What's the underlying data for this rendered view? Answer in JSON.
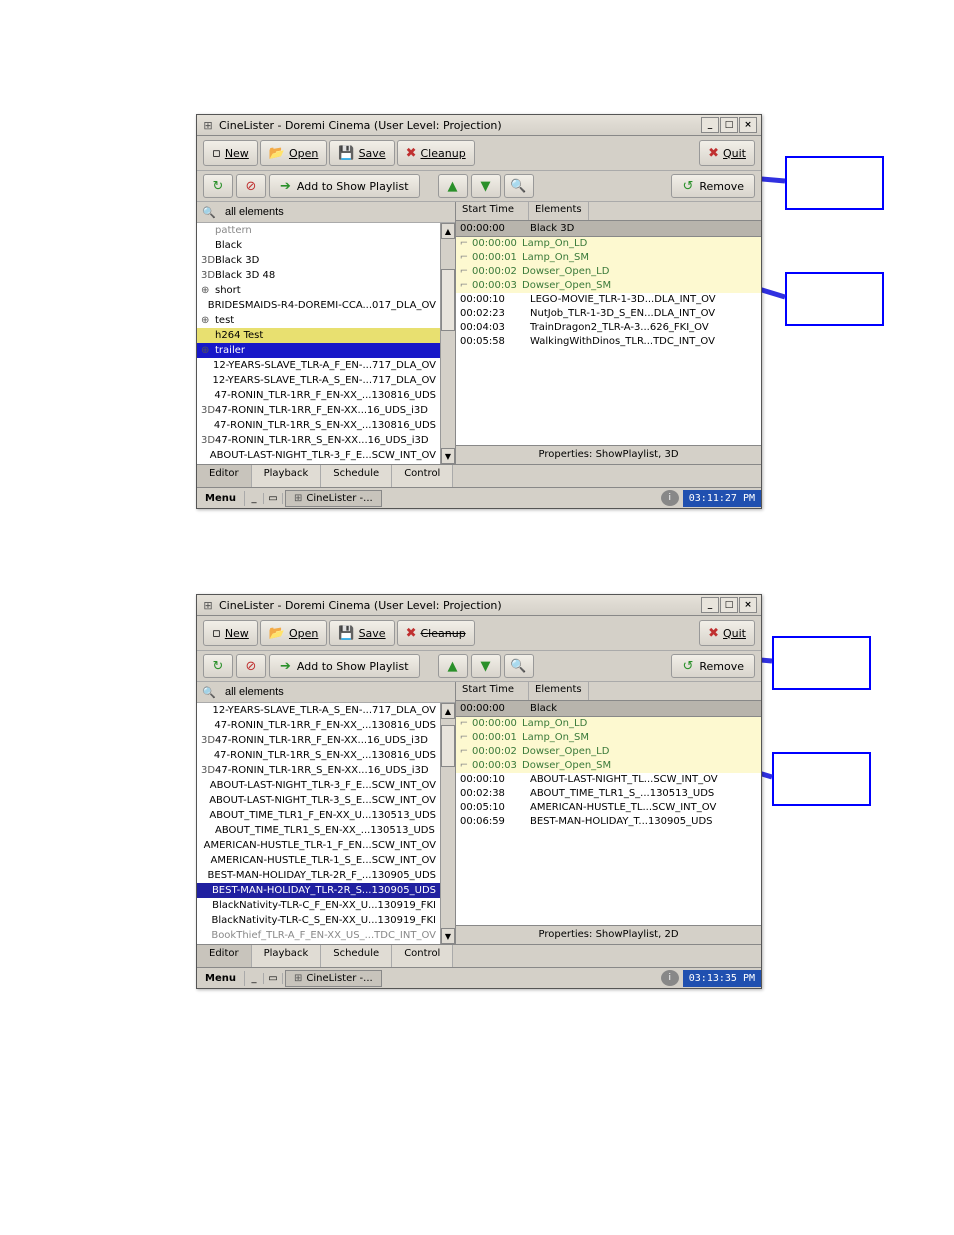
{
  "windows": [
    {
      "title": "CineLister - Doremi Cinema (User Level: Projection)",
      "toolbar": {
        "new": "New",
        "open": "Open",
        "save": "Save",
        "cleanup": "Cleanup",
        "quit": "Quit"
      },
      "subtoolbar": {
        "add": "Add to Show Playlist",
        "remove": "Remove"
      },
      "filter_value": "all elements",
      "elements": [
        {
          "icon": "",
          "label": "pattern",
          "cls": "ghost"
        },
        {
          "icon": "",
          "label": "Black",
          "cls": ""
        },
        {
          "icon": "3D",
          "label": "Black 3D",
          "cls": ""
        },
        {
          "icon": "3D",
          "label": "Black 3D 48",
          "cls": ""
        },
        {
          "icon": "⊕",
          "label": "short",
          "cls": ""
        },
        {
          "icon": "",
          "label": "BRIDESMAIDS-R4-DOREMI-CCA...017_DLA_OV",
          "cls": ""
        },
        {
          "icon": "⊕",
          "label": "test",
          "cls": ""
        },
        {
          "icon": "",
          "label": "h264 Test",
          "cls": "yellow"
        },
        {
          "icon": "⊕",
          "label": "trailer",
          "cls": "blue-sel"
        },
        {
          "icon": "",
          "label": "12-YEARS-SLAVE_TLR-A_F_EN-...717_DLA_OV",
          "cls": ""
        },
        {
          "icon": "",
          "label": "12-YEARS-SLAVE_TLR-A_S_EN-...717_DLA_OV",
          "cls": ""
        },
        {
          "icon": "",
          "label": "47-RONIN_TLR-1RR_F_EN-XX_...130816_UDS",
          "cls": ""
        },
        {
          "icon": "3D",
          "label": "47-RONIN_TLR-1RR_F_EN-XX...16_UDS_i3D",
          "cls": ""
        },
        {
          "icon": "",
          "label": "47-RONIN_TLR-1RR_S_EN-XX_...130816_UDS",
          "cls": ""
        },
        {
          "icon": "3D",
          "label": "47-RONIN_TLR-1RR_S_EN-XX...16_UDS_i3D",
          "cls": ""
        },
        {
          "icon": "",
          "label": "ABOUT-LAST-NIGHT_TLR-3_F_E...SCW_INT_OV",
          "cls": ""
        }
      ],
      "columns": {
        "start": "Start Time",
        "elem": "Elements"
      },
      "group": {
        "time": "00:00:00",
        "name": "Black 3D"
      },
      "macros": [
        {
          "time": "00:00:00",
          "name": "Lamp_On_LD"
        },
        {
          "time": "00:00:01",
          "name": "Lamp_On_SM"
        },
        {
          "time": "00:00:02",
          "name": "Dowser_Open_LD"
        },
        {
          "time": "00:00:03",
          "name": "Dowser_Open_SM"
        }
      ],
      "items": [
        {
          "time": "00:00:10",
          "name": "LEGO-MOVIE_TLR-1-3D...DLA_INT_OV"
        },
        {
          "time": "00:02:23",
          "name": "NutJob_TLR-1-3D_S_EN...DLA_INT_OV"
        },
        {
          "time": "00:04:03",
          "name": "TrainDragon2_TLR-A-3...626_FKI_OV"
        },
        {
          "time": "00:05:58",
          "name": "WalkingWithDinos_TLR...TDC_INT_OV"
        }
      ],
      "properties": "Properties: ShowPlaylist, 3D",
      "tabs": [
        "Editor",
        "Playback",
        "Schedule",
        "Control"
      ],
      "taskbar": {
        "menu": "Menu",
        "task": "CineLister -...",
        "clock": "03:11:27 PM"
      }
    },
    {
      "title": "CineLister - Doremi Cinema (User Level: Projection)",
      "toolbar": {
        "new": "New",
        "open": "Open",
        "save": "Save",
        "cleanup": "Cleanup",
        "quit": "Quit"
      },
      "subtoolbar": {
        "add": "Add to Show Playlist",
        "remove": "Remove"
      },
      "filter_value": "all elements",
      "elements": [
        {
          "icon": "",
          "label": "12-YEARS-SLAVE_TLR-A_S_EN-...717_DLA_OV",
          "cls": ""
        },
        {
          "icon": "",
          "label": "47-RONIN_TLR-1RR_F_EN-XX_...130816_UDS",
          "cls": ""
        },
        {
          "icon": "3D",
          "label": "47-RONIN_TLR-1RR_F_EN-XX...16_UDS_i3D",
          "cls": ""
        },
        {
          "icon": "",
          "label": "47-RONIN_TLR-1RR_S_EN-XX_...130816_UDS",
          "cls": ""
        },
        {
          "icon": "3D",
          "label": "47-RONIN_TLR-1RR_S_EN-XX...16_UDS_i3D",
          "cls": ""
        },
        {
          "icon": "",
          "label": "ABOUT-LAST-NIGHT_TLR-3_F_E...SCW_INT_OV",
          "cls": ""
        },
        {
          "icon": "",
          "label": "ABOUT-LAST-NIGHT_TLR-3_S_E...SCW_INT_OV",
          "cls": ""
        },
        {
          "icon": "",
          "label": "ABOUT_TIME_TLR1_F_EN-XX_U...130513_UDS",
          "cls": ""
        },
        {
          "icon": "",
          "label": "ABOUT_TIME_TLR1_S_EN-XX_...130513_UDS",
          "cls": ""
        },
        {
          "icon": "",
          "label": "AMERICAN-HUSTLE_TLR-1_F_EN...SCW_INT_OV",
          "cls": ""
        },
        {
          "icon": "",
          "label": "AMERICAN-HUSTLE_TLR-1_S_E...SCW_INT_OV",
          "cls": ""
        },
        {
          "icon": "",
          "label": "BEST-MAN-HOLIDAY_TLR-2R_F_...130905_UDS",
          "cls": ""
        },
        {
          "icon": "",
          "label": "BEST-MAN-HOLIDAY_TLR-2R_S...130905_UDS",
          "cls": "blue-sel2"
        },
        {
          "icon": "",
          "label": "BlackNativity-TLR-C_F_EN-XX_U...130919_FKI",
          "cls": ""
        },
        {
          "icon": "",
          "label": "BlackNativity-TLR-C_S_EN-XX_U...130919_FKI",
          "cls": ""
        },
        {
          "icon": "",
          "label": "BookThief_TLR-A_F_EN-XX_US_...TDC_INT_OV",
          "cls": "ghost"
        }
      ],
      "columns": {
        "start": "Start Time",
        "elem": "Elements"
      },
      "group": {
        "time": "00:00:00",
        "name": "Black"
      },
      "macros": [
        {
          "time": "00:00:00",
          "name": "Lamp_On_LD"
        },
        {
          "time": "00:00:01",
          "name": "Lamp_On_SM"
        },
        {
          "time": "00:00:02",
          "name": "Dowser_Open_LD"
        },
        {
          "time": "00:00:03",
          "name": "Dowser_Open_SM"
        }
      ],
      "items": [
        {
          "time": "00:00:10",
          "name": "ABOUT-LAST-NIGHT_TL...SCW_INT_OV"
        },
        {
          "time": "00:02:38",
          "name": "ABOUT_TIME_TLR1_S_...130513_UDS"
        },
        {
          "time": "00:05:10",
          "name": "AMERICAN-HUSTLE_TL...SCW_INT_OV"
        },
        {
          "time": "00:06:59",
          "name": "BEST-MAN-HOLIDAY_T...130905_UDS"
        }
      ],
      "properties": "Properties: ShowPlaylist, 2D",
      "tabs": [
        "Editor",
        "Playback",
        "Schedule",
        "Control"
      ],
      "taskbar": {
        "menu": "Menu",
        "task": "CineLister -...",
        "clock": "03:13:35 PM"
      }
    }
  ],
  "colors": {
    "window_bg": "#d4d0c8",
    "arrow": "#3030e0",
    "callout_border": "#0000ff",
    "highlight_yellow": "#e8e070",
    "selection_blue": "#1818c8",
    "macro_bg": "#fdf9d0",
    "clock_bg": "#2050b0"
  }
}
